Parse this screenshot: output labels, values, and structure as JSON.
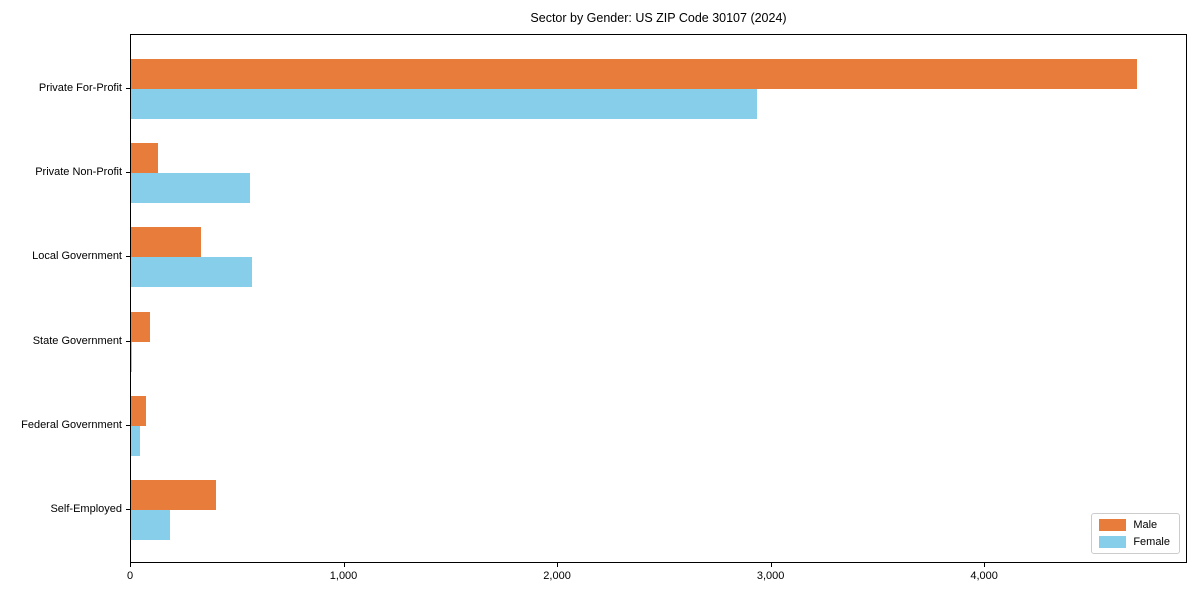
{
  "chart_data": {
    "type": "bar",
    "orientation": "horizontal",
    "title": "Sector by Gender: US ZIP Code 30107 (2024)",
    "categories": [
      "Private For-Profit",
      "Private Non-Profit",
      "Local Government",
      "State Government",
      "Federal Government",
      "Self-Employed"
    ],
    "series": [
      {
        "name": "Male",
        "color": "#e87d3b",
        "values": [
          4712,
          125,
          328,
          91,
          69,
          399
        ]
      },
      {
        "name": "Female",
        "color": "#87ceeb",
        "values": [
          2931,
          555,
          567,
          6,
          42,
          183
        ]
      }
    ],
    "xlabel": "",
    "ylabel": "",
    "xlim": [
      0,
      4950
    ],
    "xticks": [
      {
        "value": 0,
        "label": "0"
      },
      {
        "value": 1000,
        "label": "1,000"
      },
      {
        "value": 2000,
        "label": "2,000"
      },
      {
        "value": 3000,
        "label": "3,000"
      },
      {
        "value": 4000,
        "label": "4,000"
      }
    ],
    "grid": false,
    "legend_position": "lower right"
  }
}
